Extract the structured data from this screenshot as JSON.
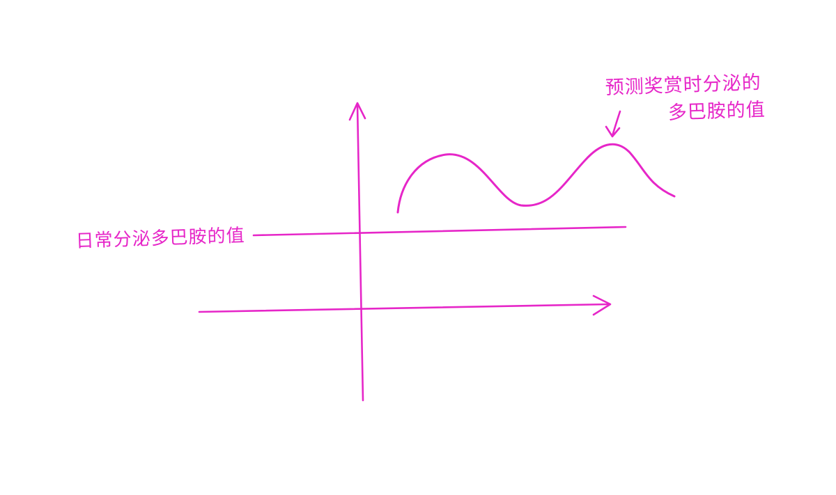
{
  "diagram": {
    "stroke_color": "#e626c8",
    "labels": {
      "baseline": "日常分泌多巴胺的值",
      "peak_line1": "预测奖赏时分泌的",
      "peak_line2": "多巴胺的值"
    },
    "elements": {
      "y_axis": "vertical axis with arrow",
      "x_axis": "horizontal axis with arrow",
      "baseline": "horizontal baseline level",
      "curve": "wavy curve above baseline",
      "pointer": "arrow pointing at curve peak"
    }
  }
}
